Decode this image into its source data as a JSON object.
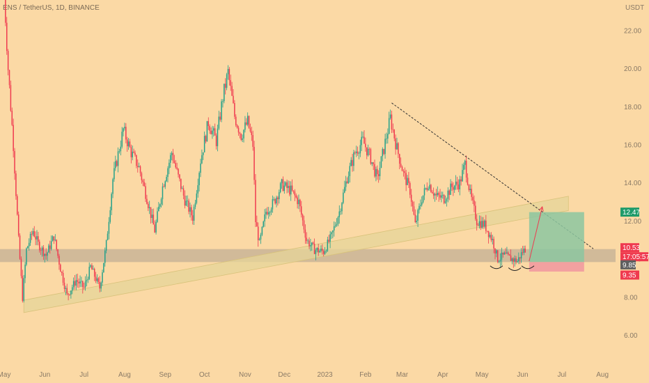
{
  "header": {
    "symbol_text": "ENS / TetherUS, 1D, BINANCE"
  },
  "colors": {
    "background": "#fbd9a5",
    "up": "#22a08a",
    "down": "#ef3a4f",
    "channel_fill": "#e5d499",
    "zone_fill": "#c9b497",
    "target_fill": "#8cc5a0",
    "stop_fill": "#f19aa0",
    "target_tag": "#1f9b6a",
    "current_tag": "#ef3a4f",
    "entry_tag": "#5f5f5f",
    "stop_tag": "#ef3a4f",
    "trendline": "#333333",
    "arrow": "#ef3a4f"
  },
  "chart_data": {
    "type": "candlestick",
    "y_axis": {
      "unit_label": "USDT",
      "ticks": [
        "22.00",
        "20.00",
        "18.00",
        "16.00",
        "14.00",
        "12.00",
        "10.00",
        "8.00",
        "6.00"
      ],
      "range": [
        4.6,
        23.6
      ]
    },
    "x_axis": {
      "ticks": [
        "May",
        "Jun",
        "Jul",
        "Aug",
        "Sep",
        "Oct",
        "Nov",
        "Dec",
        "2023",
        "Feb",
        "Mar",
        "Apr",
        "May",
        "Jun",
        "Jul",
        "Aug"
      ]
    },
    "price_path": [
      {
        "date": "2022-05-01",
        "price": 24.0
      },
      {
        "date": "2022-05-04",
        "price": 20.0
      },
      {
        "date": "2022-05-08",
        "price": 16.0
      },
      {
        "date": "2022-05-12",
        "price": 11.0
      },
      {
        "date": "2022-05-15",
        "price": 8.0
      },
      {
        "date": "2022-05-18",
        "price": 10.5
      },
      {
        "date": "2022-05-23",
        "price": 11.5
      },
      {
        "date": "2022-05-27",
        "price": 10.8
      },
      {
        "date": "2022-06-02",
        "price": 10.2
      },
      {
        "date": "2022-06-08",
        "price": 11.2
      },
      {
        "date": "2022-06-13",
        "price": 9.5
      },
      {
        "date": "2022-06-18",
        "price": 8.1
      },
      {
        "date": "2022-06-25",
        "price": 8.9
      },
      {
        "date": "2022-07-01",
        "price": 8.5
      },
      {
        "date": "2022-07-06",
        "price": 9.6
      },
      {
        "date": "2022-07-13",
        "price": 8.5
      },
      {
        "date": "2022-07-18",
        "price": 10.8
      },
      {
        "date": "2022-07-23",
        "price": 14.2
      },
      {
        "date": "2022-07-27",
        "price": 15.5
      },
      {
        "date": "2022-07-31",
        "price": 16.8
      },
      {
        "date": "2022-08-06",
        "price": 15.6
      },
      {
        "date": "2022-08-12",
        "price": 14.8
      },
      {
        "date": "2022-08-18",
        "price": 13.2
      },
      {
        "date": "2022-08-24",
        "price": 11.5
      },
      {
        "date": "2022-08-30",
        "price": 13.8
      },
      {
        "date": "2022-09-06",
        "price": 15.6
      },
      {
        "date": "2022-09-11",
        "price": 14.3
      },
      {
        "date": "2022-09-16",
        "price": 13.1
      },
      {
        "date": "2022-09-22",
        "price": 12.2
      },
      {
        "date": "2022-09-28",
        "price": 15.2
      },
      {
        "date": "2022-10-04",
        "price": 17.2
      },
      {
        "date": "2022-10-10",
        "price": 16.2
      },
      {
        "date": "2022-10-15",
        "price": 18.5
      },
      {
        "date": "2022-10-19",
        "price": 19.8
      },
      {
        "date": "2022-10-24",
        "price": 17.5
      },
      {
        "date": "2022-10-29",
        "price": 16.5
      },
      {
        "date": "2022-11-03",
        "price": 17.2
      },
      {
        "date": "2022-11-07",
        "price": 16.0
      },
      {
        "date": "2022-11-09",
        "price": 12.0
      },
      {
        "date": "2022-11-12",
        "price": 10.8
      },
      {
        "date": "2022-11-17",
        "price": 12.5
      },
      {
        "date": "2022-11-23",
        "price": 13.0
      },
      {
        "date": "2022-11-29",
        "price": 13.9
      },
      {
        "date": "2022-12-06",
        "price": 13.6
      },
      {
        "date": "2022-12-12",
        "price": 13.0
      },
      {
        "date": "2022-12-18",
        "price": 11.0
      },
      {
        "date": "2022-12-24",
        "price": 10.5
      },
      {
        "date": "2022-12-31",
        "price": 10.4
      },
      {
        "date": "2023-01-06",
        "price": 11.2
      },
      {
        "date": "2023-01-12",
        "price": 12.5
      },
      {
        "date": "2023-01-18",
        "price": 14.3
      },
      {
        "date": "2023-01-24",
        "price": 15.6
      },
      {
        "date": "2023-01-30",
        "price": 16.2
      },
      {
        "date": "2023-02-05",
        "price": 15.3
      },
      {
        "date": "2023-02-10",
        "price": 14.2
      },
      {
        "date": "2023-02-15",
        "price": 15.8
      },
      {
        "date": "2023-02-20",
        "price": 17.4
      },
      {
        "date": "2023-02-25",
        "price": 15.8
      },
      {
        "date": "2023-03-02",
        "price": 14.5
      },
      {
        "date": "2023-03-07",
        "price": 13.6
      },
      {
        "date": "2023-03-11",
        "price": 11.8
      },
      {
        "date": "2023-03-16",
        "price": 13.2
      },
      {
        "date": "2023-03-21",
        "price": 14.0
      },
      {
        "date": "2023-03-27",
        "price": 13.3
      },
      {
        "date": "2023-04-02",
        "price": 13.2
      },
      {
        "date": "2023-04-08",
        "price": 13.8
      },
      {
        "date": "2023-04-14",
        "price": 14.0
      },
      {
        "date": "2023-04-18",
        "price": 15.0
      },
      {
        "date": "2023-04-22",
        "price": 13.4
      },
      {
        "date": "2023-04-27",
        "price": 12.0
      },
      {
        "date": "2023-05-03",
        "price": 11.8
      },
      {
        "date": "2023-05-09",
        "price": 11.0
      },
      {
        "date": "2023-05-13",
        "price": 10.0
      },
      {
        "date": "2023-05-18",
        "price": 10.2
      },
      {
        "date": "2023-05-24",
        "price": 10.0
      },
      {
        "date": "2023-05-28",
        "price": 9.9
      },
      {
        "date": "2023-06-01",
        "price": 10.4
      },
      {
        "date": "2023-06-03",
        "price": 10.53
      }
    ],
    "support_zone": {
      "from": 9.85,
      "to": 10.53
    },
    "ascending_channel": {
      "start": {
        "date": "2022-05-16",
        "lower": 7.2,
        "upper": 7.85
      },
      "end": {
        "date": "2023-07-06",
        "lower": 12.55,
        "upper": 13.3
      }
    },
    "descending_trendline": {
      "start": {
        "date": "2023-02-21",
        "price": 18.2
      },
      "end": {
        "date": "2023-07-25",
        "price": 10.55
      }
    },
    "long_position": {
      "start_date": "2023-06-06",
      "end_date": "2023-07-18",
      "entry": 9.85,
      "target": 12.47,
      "stop": 9.35
    },
    "projection_arrow": {
      "from": {
        "date": "2023-06-06",
        "price": 9.9
      },
      "to": {
        "date": "2023-06-16",
        "price": 12.75
      }
    },
    "double_bottom_marks": [
      {
        "date": "2023-05-12",
        "price": 9.65
      },
      {
        "date": "2023-05-26",
        "price": 9.55
      },
      {
        "date": "2023-06-05",
        "price": 9.65
      }
    ],
    "price_tags": [
      {
        "label": "12.47",
        "price": 12.47,
        "role": "target"
      },
      {
        "label": "10.53",
        "price": 10.53,
        "role": "current"
      },
      {
        "label": "17:05:57",
        "price": 10.53,
        "role": "countdown"
      },
      {
        "label": "9.85",
        "price": 9.85,
        "role": "entry"
      },
      {
        "label": "9.35",
        "price": 9.35,
        "role": "stop"
      }
    ]
  }
}
